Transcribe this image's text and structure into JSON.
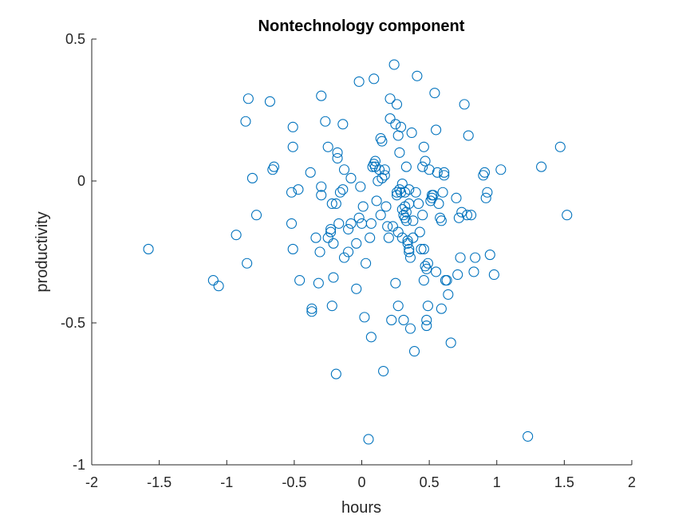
{
  "chart_data": {
    "type": "scatter",
    "title": "Nontechnology component",
    "xlabel": "hours",
    "ylabel": "productivity",
    "xlim": [
      -2,
      2
    ],
    "ylim": [
      -1,
      0.5
    ],
    "xticks": [
      -2,
      -1.5,
      -1,
      -0.5,
      0,
      0.5,
      1,
      1.5,
      2
    ],
    "xtick_labels": [
      "-2",
      "-1.5",
      "-1",
      "-0.5",
      "0",
      "0.5",
      "1",
      "1.5",
      "2"
    ],
    "yticks": [
      -1,
      -0.5,
      0,
      0.5
    ],
    "ytick_labels": [
      "-1",
      "-0.5",
      "0",
      "0.5"
    ],
    "grid": false,
    "marker": "circle-open",
    "color": "#0072BD",
    "points": [
      [
        -1.58,
        -0.24
      ],
      [
        -1.1,
        -0.35
      ],
      [
        -1.06,
        -0.37
      ],
      [
        -0.93,
        -0.19
      ],
      [
        -0.85,
        -0.29
      ],
      [
        -0.84,
        0.29
      ],
      [
        -0.86,
        0.21
      ],
      [
        -0.81,
        0.01
      ],
      [
        -0.78,
        -0.12
      ],
      [
        -0.68,
        0.28
      ],
      [
        -0.65,
        0.05
      ],
      [
        -0.66,
        0.04
      ],
      [
        -0.51,
        0.19
      ],
      [
        -0.51,
        0.12
      ],
      [
        -0.52,
        -0.04
      ],
      [
        -0.52,
        -0.15
      ],
      [
        -0.51,
        -0.24
      ],
      [
        -0.47,
        -0.03
      ],
      [
        -0.46,
        -0.35
      ],
      [
        -0.38,
        0.03
      ],
      [
        -0.37,
        -0.45
      ],
      [
        -0.37,
        -0.46
      ],
      [
        -0.34,
        -0.2
      ],
      [
        -0.32,
        -0.36
      ],
      [
        -0.31,
        -0.25
      ],
      [
        -0.3,
        0.3
      ],
      [
        -0.3,
        -0.05
      ],
      [
        -0.3,
        -0.02
      ],
      [
        -0.27,
        0.21
      ],
      [
        -0.25,
        0.12
      ],
      [
        -0.25,
        -0.2
      ],
      [
        -0.23,
        -0.18
      ],
      [
        -0.23,
        -0.17
      ],
      [
        -0.22,
        -0.08
      ],
      [
        -0.22,
        -0.44
      ],
      [
        -0.21,
        -0.34
      ],
      [
        -0.21,
        -0.22
      ],
      [
        -0.19,
        -0.08
      ],
      [
        -0.19,
        -0.68
      ],
      [
        -0.18,
        0.08
      ],
      [
        -0.18,
        0.1
      ],
      [
        -0.17,
        -0.15
      ],
      [
        -0.16,
        -0.04
      ],
      [
        -0.14,
        -0.03
      ],
      [
        -0.14,
        0.2
      ],
      [
        -0.13,
        0.04
      ],
      [
        -0.13,
        -0.27
      ],
      [
        -0.1,
        -0.17
      ],
      [
        -0.1,
        -0.25
      ],
      [
        -0.08,
        0.01
      ],
      [
        -0.08,
        -0.15
      ],
      [
        -0.04,
        -0.22
      ],
      [
        -0.04,
        -0.38
      ],
      [
        -0.02,
        0.35
      ],
      [
        -0.02,
        -0.13
      ],
      [
        -0.01,
        -0.02
      ],
      [
        0.0,
        -0.15
      ],
      [
        0.01,
        -0.09
      ],
      [
        0.02,
        -0.48
      ],
      [
        0.03,
        -0.29
      ],
      [
        0.05,
        -0.91
      ],
      [
        0.06,
        -0.2
      ],
      [
        0.07,
        -0.55
      ],
      [
        0.07,
        -0.15
      ],
      [
        0.08,
        0.05
      ],
      [
        0.09,
        0.36
      ],
      [
        0.09,
        0.06
      ],
      [
        0.1,
        0.05
      ],
      [
        0.1,
        0.07
      ],
      [
        0.11,
        -0.07
      ],
      [
        0.12,
        0.0
      ],
      [
        0.13,
        0.04
      ],
      [
        0.14,
        -0.12
      ],
      [
        0.14,
        0.15
      ],
      [
        0.15,
        0.14
      ],
      [
        0.15,
        0.01
      ],
      [
        0.16,
        -0.67
      ],
      [
        0.17,
        0.02
      ],
      [
        0.17,
        0.04
      ],
      [
        0.18,
        -0.09
      ],
      [
        0.19,
        -0.16
      ],
      [
        0.2,
        -0.2
      ],
      [
        0.21,
        0.29
      ],
      [
        0.21,
        0.22
      ],
      [
        0.22,
        -0.49
      ],
      [
        0.23,
        -0.16
      ],
      [
        0.24,
        0.41
      ],
      [
        0.25,
        -0.36
      ],
      [
        0.25,
        0.2
      ],
      [
        0.26,
        0.27
      ],
      [
        0.26,
        -0.04
      ],
      [
        0.26,
        -0.05
      ],
      [
        0.27,
        -0.18
      ],
      [
        0.27,
        0.16
      ],
      [
        0.27,
        -0.44
      ],
      [
        0.28,
        -0.03
      ],
      [
        0.28,
        0.1
      ],
      [
        0.29,
        0.19
      ],
      [
        0.29,
        -0.04
      ],
      [
        0.3,
        -0.01
      ],
      [
        0.3,
        -0.1
      ],
      [
        0.3,
        -0.2
      ],
      [
        0.31,
        -0.49
      ],
      [
        0.31,
        -0.12
      ],
      [
        0.32,
        -0.13
      ],
      [
        0.32,
        -0.04
      ],
      [
        0.32,
        -0.09
      ],
      [
        0.33,
        -0.11
      ],
      [
        0.33,
        0.05
      ],
      [
        0.33,
        -0.14
      ],
      [
        0.34,
        -0.21
      ],
      [
        0.34,
        -0.22
      ],
      [
        0.35,
        -0.03
      ],
      [
        0.35,
        -0.24
      ],
      [
        0.35,
        -0.25
      ],
      [
        0.35,
        -0.08
      ],
      [
        0.36,
        -0.27
      ],
      [
        0.36,
        -0.52
      ],
      [
        0.37,
        0.17
      ],
      [
        0.38,
        -0.14
      ],
      [
        0.38,
        -0.2
      ],
      [
        0.39,
        -0.6
      ],
      [
        0.4,
        -0.04
      ],
      [
        0.41,
        0.37
      ],
      [
        0.42,
        -0.08
      ],
      [
        0.43,
        -0.18
      ],
      [
        0.44,
        -0.24
      ],
      [
        0.45,
        -0.12
      ],
      [
        0.45,
        0.05
      ],
      [
        0.46,
        0.12
      ],
      [
        0.46,
        -0.35
      ],
      [
        0.46,
        -0.24
      ],
      [
        0.47,
        0.07
      ],
      [
        0.47,
        -0.3
      ],
      [
        0.48,
        -0.31
      ],
      [
        0.48,
        -0.49
      ],
      [
        0.48,
        -0.51
      ],
      [
        0.49,
        -0.44
      ],
      [
        0.49,
        -0.29
      ],
      [
        0.5,
        0.04
      ],
      [
        0.51,
        -0.07
      ],
      [
        0.52,
        -0.05
      ],
      [
        0.52,
        -0.06
      ],
      [
        0.53,
        -0.05
      ],
      [
        0.54,
        0.31
      ],
      [
        0.55,
        -0.32
      ],
      [
        0.55,
        0.18
      ],
      [
        0.56,
        0.03
      ],
      [
        0.57,
        -0.08
      ],
      [
        0.58,
        -0.13
      ],
      [
        0.59,
        -0.14
      ],
      [
        0.59,
        -0.45
      ],
      [
        0.6,
        -0.04
      ],
      [
        0.61,
        0.02
      ],
      [
        0.61,
        0.03
      ],
      [
        0.62,
        -0.35
      ],
      [
        0.63,
        -0.35
      ],
      [
        0.64,
        -0.4
      ],
      [
        0.66,
        -0.57
      ],
      [
        0.7,
        -0.06
      ],
      [
        0.71,
        -0.33
      ],
      [
        0.72,
        -0.13
      ],
      [
        0.73,
        -0.27
      ],
      [
        0.74,
        -0.11
      ],
      [
        0.76,
        0.27
      ],
      [
        0.78,
        -0.12
      ],
      [
        0.79,
        0.16
      ],
      [
        0.81,
        -0.12
      ],
      [
        0.83,
        -0.32
      ],
      [
        0.84,
        -0.27
      ],
      [
        0.9,
        0.02
      ],
      [
        0.91,
        0.03
      ],
      [
        0.92,
        -0.06
      ],
      [
        0.93,
        -0.04
      ],
      [
        0.95,
        -0.26
      ],
      [
        0.98,
        -0.33
      ],
      [
        1.03,
        0.04
      ],
      [
        1.23,
        -0.9
      ],
      [
        1.33,
        0.05
      ],
      [
        1.47,
        0.12
      ],
      [
        1.52,
        -0.12
      ]
    ]
  }
}
